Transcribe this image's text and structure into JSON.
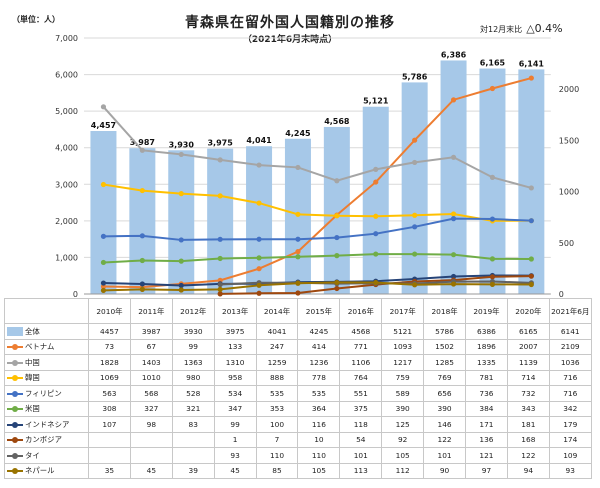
{
  "header": {
    "unit": "（単位：人）",
    "title": "青森県在留外国人国籍別の推移",
    "subtitle": "（2021年6月末時点）",
    "note_label": "対12月末比",
    "note_value": "△0.4%"
  },
  "chart_data": {
    "type": "bar",
    "categories": [
      "2010年",
      "2011年",
      "2012年",
      "2013年",
      "2014年",
      "2015年",
      "2016年",
      "2017年",
      "2018年",
      "2019年",
      "2020年",
      "2021年6月"
    ],
    "total": {
      "name": "全体",
      "values": [
        4457,
        3987,
        3930,
        3975,
        4041,
        4245,
        4568,
        5121,
        5786,
        6386,
        6165,
        6141
      ],
      "color": "#a6c8e8"
    },
    "series": [
      {
        "name": "ベトナム",
        "color": "#ed7d31",
        "values": [
          73,
          67,
          99,
          133,
          247,
          414,
          771,
          1093,
          1502,
          1896,
          2007,
          2109
        ]
      },
      {
        "name": "中国",
        "color": "#a5a5a5",
        "values": [
          1828,
          1403,
          1363,
          1310,
          1259,
          1236,
          1106,
          1217,
          1285,
          1335,
          1139,
          1036
        ]
      },
      {
        "name": "韓国",
        "color": "#ffc000",
        "values": [
          1069,
          1010,
          980,
          958,
          888,
          778,
          764,
          759,
          769,
          781,
          714,
          716
        ]
      },
      {
        "name": "フィリピン",
        "color": "#4472c4",
        "values": [
          563,
          568,
          528,
          534,
          535,
          535,
          551,
          589,
          656,
          736,
          732,
          716
        ]
      },
      {
        "name": "米国",
        "color": "#70ad47",
        "values": [
          308,
          327,
          321,
          347,
          353,
          364,
          375,
          390,
          390,
          384,
          343,
          342
        ]
      },
      {
        "name": "インドネシア",
        "color": "#264478",
        "values": [
          107,
          98,
          83,
          99,
          100,
          116,
          118,
          125,
          146,
          171,
          181,
          179
        ]
      },
      {
        "name": "カンボジア",
        "color": "#9e480e",
        "values": [
          null,
          null,
          null,
          1,
          7,
          10,
          54,
          92,
          122,
          136,
          168,
          174
        ]
      },
      {
        "name": "タイ",
        "color": "#636363",
        "values": [
          null,
          null,
          null,
          93,
          110,
          110,
          101,
          105,
          101,
          121,
          122,
          109
        ]
      },
      {
        "name": "ネパール",
        "color": "#997300",
        "values": [
          35,
          45,
          39,
          45,
          85,
          105,
          113,
          112,
          90,
          97,
          94,
          93
        ]
      }
    ],
    "y_left": {
      "min": 0,
      "max": 7000,
      "step": 1000,
      "ticks": [
        "0",
        "1,000",
        "2,000",
        "3,000",
        "4,000",
        "5,000",
        "6,000",
        "7,000"
      ]
    },
    "y_right": {
      "min": 0,
      "max": 2500,
      "step": 500,
      "ticks": [
        "0",
        "500",
        "1000",
        "1500",
        "2000"
      ]
    },
    "bar_labels": [
      "4,457",
      "3,987",
      "3,930",
      "3,975",
      "4,041",
      "4,245",
      "4,568",
      "5,121",
      "5,786",
      "6,386",
      "6,165",
      "6,141"
    ],
    "grid": true
  }
}
